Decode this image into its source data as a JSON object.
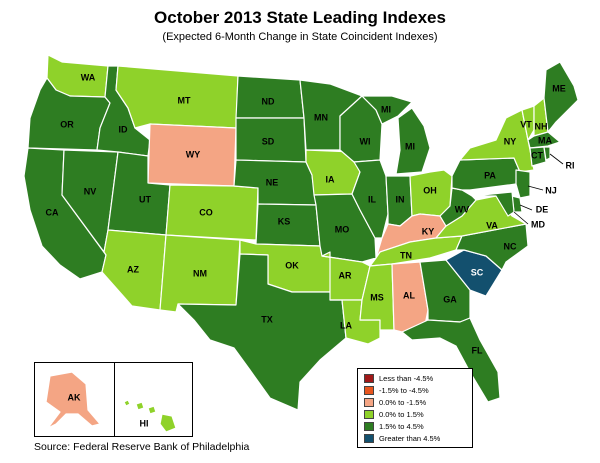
{
  "title": "October 2013 State Leading Indexes",
  "subtitle": "(Expected 6-Month Change in State Coincident Indexes)",
  "source": "Source: Federal Reserve Bank of Philadelphia",
  "colors": {
    "lt_neg4_5": "#a01818",
    "neg4_5_neg1_5": "#e8551e",
    "neg1_5_0": "#f4a584",
    "0_1_5": "#8fd22a",
    "1_5_4_5": "#2e7d22",
    "gt_4_5": "#13506e"
  },
  "legend": [
    {
      "label": "Less than -4.5%",
      "color": "#a01818"
    },
    {
      "label": "-1.5% to -4.5%",
      "color": "#e8551e"
    },
    {
      "label": "0.0% to -1.5%",
      "color": "#f4a584"
    },
    {
      "label": "0.0% to  1.5%",
      "color": "#8fd22a"
    },
    {
      "label": "1.5% to  4.5%",
      "color": "#2e7d22"
    },
    {
      "label": "Greater than 4.5%",
      "color": "#13506e"
    }
  ],
  "states": {
    "WA": {
      "label": "WA",
      "category": "0_1_5"
    },
    "OR": {
      "label": "OR",
      "category": "1_5_4_5"
    },
    "CA": {
      "label": "CA",
      "category": "1_5_4_5"
    },
    "NV": {
      "label": "NV",
      "category": "1_5_4_5"
    },
    "ID": {
      "label": "ID",
      "category": "1_5_4_5"
    },
    "MT": {
      "label": "MT",
      "category": "0_1_5"
    },
    "WY": {
      "label": "WY",
      "category": "neg1_5_0"
    },
    "UT": {
      "label": "UT",
      "category": "1_5_4_5"
    },
    "AZ": {
      "label": "AZ",
      "category": "0_1_5"
    },
    "CO": {
      "label": "CO",
      "category": "0_1_5"
    },
    "NM": {
      "label": "NM",
      "category": "0_1_5"
    },
    "ND": {
      "label": "ND",
      "category": "1_5_4_5"
    },
    "SD": {
      "label": "SD",
      "category": "1_5_4_5"
    },
    "NE": {
      "label": "NE",
      "category": "1_5_4_5"
    },
    "KS": {
      "label": "KS",
      "category": "1_5_4_5"
    },
    "OK": {
      "label": "OK",
      "category": "0_1_5"
    },
    "TX": {
      "label": "TX",
      "category": "1_5_4_5"
    },
    "MN": {
      "label": "MN",
      "category": "1_5_4_5"
    },
    "IA": {
      "label": "IA",
      "category": "0_1_5"
    },
    "MO": {
      "label": "MO",
      "category": "1_5_4_5"
    },
    "AR": {
      "label": "AR",
      "category": "0_1_5"
    },
    "LA": {
      "label": "LA",
      "category": "0_1_5"
    },
    "WI": {
      "label": "WI",
      "category": "1_5_4_5"
    },
    "IL": {
      "label": "IL",
      "category": "1_5_4_5"
    },
    "MI": {
      "label": "MI",
      "category": "1_5_4_5"
    },
    "MI_UP": {
      "label": "MI",
      "category": "1_5_4_5"
    },
    "IN": {
      "label": "IN",
      "category": "1_5_4_5"
    },
    "OH": {
      "label": "OH",
      "category": "0_1_5"
    },
    "KY": {
      "label": "KY",
      "category": "neg1_5_0"
    },
    "TN": {
      "label": "TN",
      "category": "0_1_5"
    },
    "MS": {
      "label": "MS",
      "category": "0_1_5"
    },
    "AL": {
      "label": "AL",
      "category": "neg1_5_0"
    },
    "GA": {
      "label": "GA",
      "category": "1_5_4_5"
    },
    "FL": {
      "label": "FL",
      "category": "1_5_4_5"
    },
    "SC": {
      "label": "SC",
      "category": "gt_4_5"
    },
    "NC": {
      "label": "NC",
      "category": "1_5_4_5"
    },
    "VA": {
      "label": "VA",
      "category": "0_1_5"
    },
    "WV": {
      "label": "WV",
      "category": "1_5_4_5"
    },
    "PA": {
      "label": "PA",
      "category": "1_5_4_5"
    },
    "NY": {
      "label": "NY",
      "category": "0_1_5"
    },
    "VT": {
      "label": "VT",
      "category": "0_1_5"
    },
    "NH": {
      "label": "NH",
      "category": "0_1_5"
    },
    "ME": {
      "label": "ME",
      "category": "1_5_4_5"
    },
    "MA": {
      "label": "MA",
      "category": "1_5_4_5"
    },
    "CT": {
      "label": "CT",
      "category": "1_5_4_5"
    },
    "RI": {
      "label": "RI",
      "category": "1_5_4_5"
    },
    "NJ": {
      "label": "NJ",
      "category": "1_5_4_5"
    },
    "DE": {
      "label": "DE",
      "category": "1_5_4_5"
    },
    "MD": {
      "label": "MD",
      "category": "1_5_4_5"
    },
    "AK": {
      "label": "AK",
      "category": "neg1_5_0"
    },
    "HI": {
      "label": "HI",
      "category": "0_1_5"
    }
  }
}
